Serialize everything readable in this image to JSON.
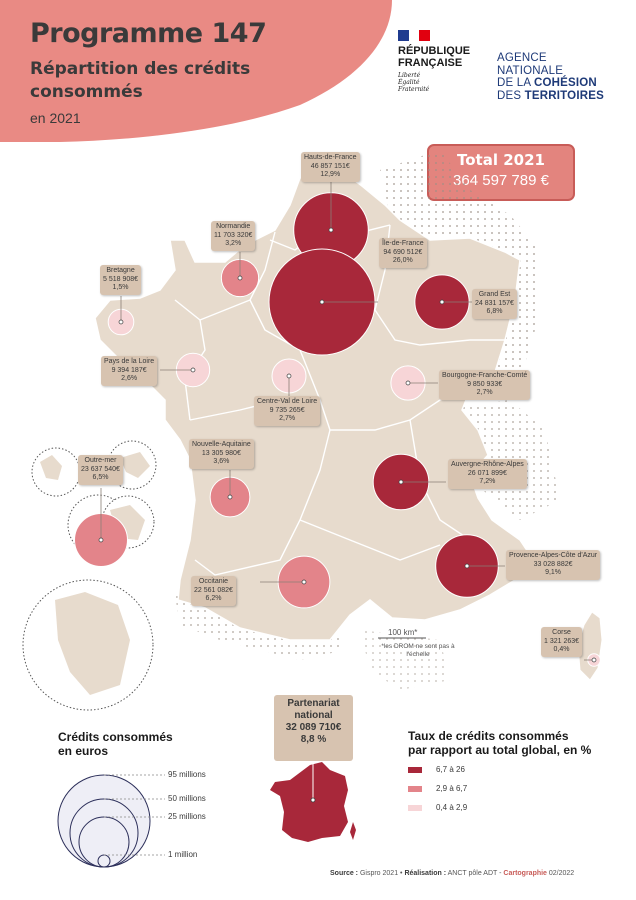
{
  "header": {
    "title": "Programme 147",
    "subtitle": "Répartition des crédits consommés",
    "year": "en 2021"
  },
  "logos": {
    "republique": {
      "line1": "RÉPUBLIQUE",
      "line2": "FRANÇAISE",
      "motto1": "Liberté",
      "motto2": "Égalité",
      "motto3": "Fraternité"
    },
    "anct": {
      "line1": "AGENCE",
      "line2": "NATIONALE",
      "line3_a": "DE LA ",
      "line3_b": "COHÉSION",
      "line4_a": "DES ",
      "line4_b": "TERRITOIRES"
    }
  },
  "total": {
    "title": "Total 2021",
    "value": "364 597 789 €"
  },
  "regions": [
    {
      "name": "Hauts-de-France",
      "amount": "46 857 151€",
      "share": "12,9%",
      "class": "high"
    },
    {
      "name": "Île-de-France",
      "amount": "94 690 512€",
      "share": "26,0%",
      "class": "high"
    },
    {
      "name": "Grand Est",
      "amount": "24 831 157€",
      "share": "6,8%",
      "class": "high"
    },
    {
      "name": "Normandie",
      "amount": "11 703 320€",
      "share": "3,2%",
      "class": "mid"
    },
    {
      "name": "Bretagne",
      "amount": "5 518 908€",
      "share": "1,5%",
      "class": "low"
    },
    {
      "name": "Pays de la Loire",
      "amount": "9 394 187€",
      "share": "2,6%",
      "class": "low"
    },
    {
      "name": "Centre-Val de Loire",
      "amount": "9 735 265€",
      "share": "2,7%",
      "class": "low"
    },
    {
      "name": "Bourgogne-Franche-Comté",
      "amount": "9 850 933€",
      "share": "2,7%",
      "class": "low"
    },
    {
      "name": "Nouvelle-Aquitaine",
      "amount": "13 305 980€",
      "share": "3,6%",
      "class": "mid"
    },
    {
      "name": "Auvergne-Rhône-Alpes",
      "amount": "26 071 899€",
      "share": "7,2%",
      "class": "high"
    },
    {
      "name": "Outre-mer",
      "amount": "23 637 540€",
      "share": "6,5%",
      "class": "mid"
    },
    {
      "name": "Provence-Alpes-Côte d'Azur",
      "amount": "33 028 882€",
      "share": "9,1%",
      "class": "high"
    },
    {
      "name": "Occitanie",
      "amount": "22 561 082€",
      "share": "6,2%",
      "class": "mid"
    },
    {
      "name": "Corse",
      "amount": "1 321 263€",
      "share": "0,4%",
      "class": "low"
    }
  ],
  "partenariat": {
    "line1": "Partenariat",
    "line2": "national",
    "amount": "32 089 710€",
    "share": "8,8 %"
  },
  "scale_bar": {
    "label": "100 km*",
    "note": "*les DROM ne sont pas à l'échelle"
  },
  "legend_size": {
    "title_line1": "Crédits consommés",
    "title_line2": "en euros",
    "items": [
      "95 millions",
      "50 millions",
      "25 millions",
      "1 million"
    ]
  },
  "legend_color": {
    "title_line1": "Taux de crédits consommés",
    "title_line2": "par rapport au total global, en %",
    "items": [
      {
        "label": "6,7 à 26",
        "color": "#a8283a"
      },
      {
        "label": "2,9 à 6,7",
        "color": "#e3848a"
      },
      {
        "label": "0,4 à 2,9",
        "color": "#f7d5d7"
      }
    ]
  },
  "source": {
    "k1": "Source :",
    "v1": " Gispro 2021 • ",
    "k2": "Réalisation :",
    "v2": " ANCT pôle ADT - ",
    "k3": "Cartographie",
    "v3": " 02/2022"
  },
  "colors": {
    "high": "#a8283a",
    "mid": "#e3848a",
    "low": "#f7d5d7",
    "land": "#e7dbcd",
    "label_bg": "#d7c3b0",
    "header": "#e98a84"
  }
}
